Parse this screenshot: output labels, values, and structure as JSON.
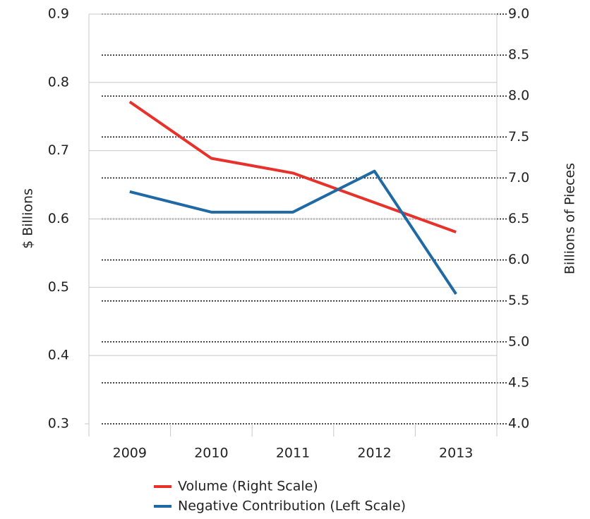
{
  "chart_data": {
    "type": "line",
    "categories": [
      "2009",
      "2010",
      "2011",
      "2012",
      "2013"
    ],
    "series": [
      {
        "name": "Volume (Right Scale)",
        "color": "#e8312a",
        "axis": "y2",
        "values": [
          7.93,
          7.24,
          7.06,
          6.7,
          6.34
        ]
      },
      {
        "name": "Negative Contribution (Left Scale)",
        "color": "#1f6aa5",
        "values": [
          0.64,
          0.61,
          0.61,
          0.67,
          0.49
        ]
      }
    ],
    "ylabel": "$ Billions",
    "y2label": "Billions of Pieces",
    "ylim": [
      0.3,
      0.9
    ],
    "yticks": [
      0.3,
      0.4,
      0.5,
      0.6,
      0.7,
      0.8,
      0.9
    ],
    "y2lim": [
      4,
      9
    ],
    "y2ticks": [
      {
        "value": 4,
        "label": "4.0"
      },
      4.5,
      {
        "value": 5,
        "label": "5.0"
      },
      5.5,
      {
        "value": 6,
        "label": "6.0"
      },
      6.5,
      {
        "value": 7,
        "label": "7.0"
      },
      7.5,
      {
        "value": 8,
        "label": "8.0"
      },
      8.5,
      {
        "value": 9,
        "label": "9.0"
      }
    ],
    "grid": true,
    "legend": "bottom"
  }
}
